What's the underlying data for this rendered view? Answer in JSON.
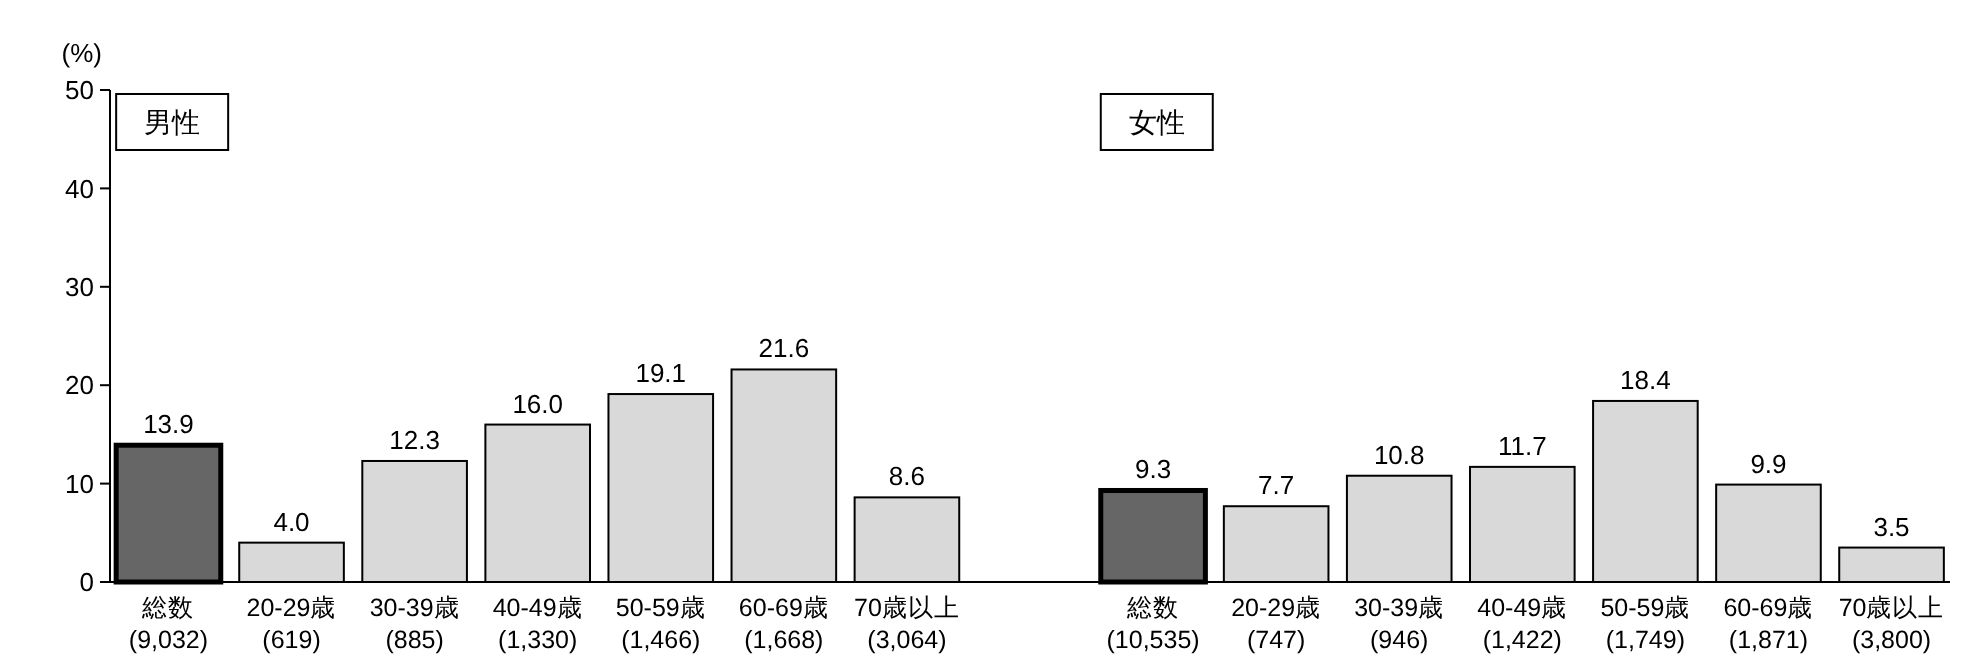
{
  "chart_data": {
    "type": "bar",
    "ylabel": "(%)",
    "categories": [
      "総数\n(9,032)",
      "20-29歳\n(619)",
      "30-39歳\n(885)",
      "40-49歳\n(1,330)",
      "50-59歳\n(1,466)",
      "60-69歳\n(1,668)",
      "70歳以上\n(3,064)",
      null,
      "総数\n(10,535)",
      "20-29歳\n(747)",
      "30-39歳\n(946)",
      "40-49歳\n(1,422)",
      "50-59歳\n(1,749)",
      "60-69歳\n(1,871)",
      "70歳以上\n(3,800)"
    ],
    "values": [
      13.9,
      4.0,
      12.3,
      16.0,
      19.1,
      21.6,
      8.6,
      null,
      9.3,
      7.7,
      10.8,
      11.7,
      18.4,
      9.9,
      3.5
    ],
    "value_labels": [
      "13.9",
      "4.0",
      "12.3",
      "16.0",
      "19.1",
      "21.6",
      "8.6",
      null,
      "9.3",
      "7.7",
      "10.8",
      "11.7",
      "18.4",
      "9.9",
      "3.5"
    ],
    "colors": [
      "#666666",
      "#d9d9d9",
      "#d9d9d9",
      "#d9d9d9",
      "#d9d9d9",
      "#d9d9d9",
      "#d9d9d9",
      null,
      "#666666",
      "#d9d9d9",
      "#d9d9d9",
      "#d9d9d9",
      "#d9d9d9",
      "#d9d9d9",
      "#d9d9d9"
    ],
    "ylim": [
      0,
      50
    ],
    "yticks": [
      0,
      10,
      20,
      30,
      40,
      50
    ],
    "annotations": [
      "男性",
      "女性"
    ]
  }
}
